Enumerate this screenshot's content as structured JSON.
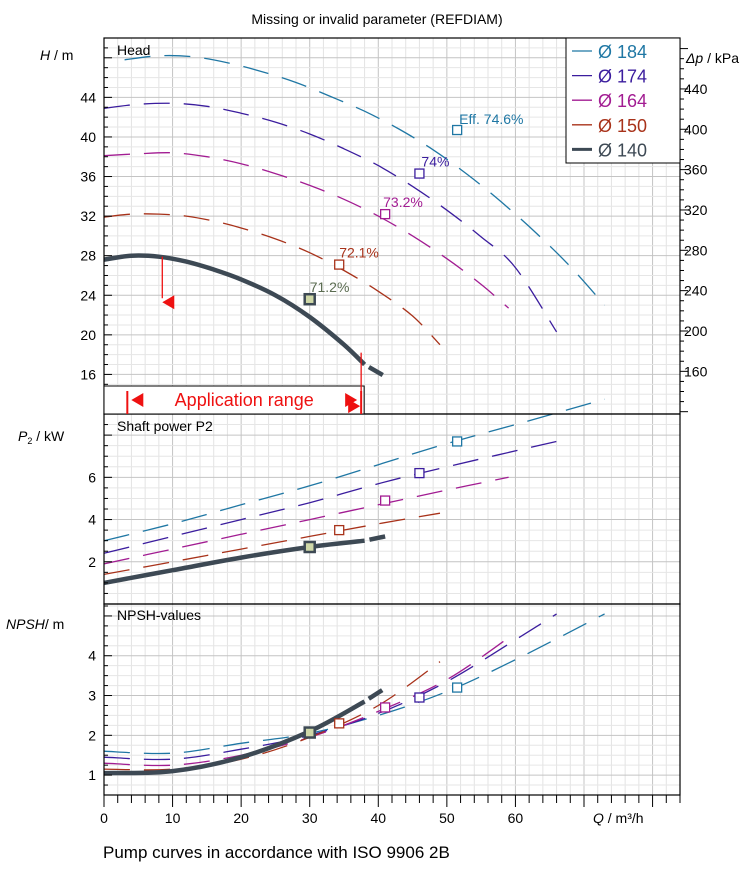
{
  "header": {
    "title": "Missing or invalid parameter (REFDIAM)"
  },
  "footer": {
    "caption": "Pump curves in accordance with ISO 9906 2B"
  },
  "chart_data": [
    {
      "type": "line",
      "panel": "head",
      "title": "Head",
      "ylabel_italic": "H",
      "ylabel_unit": " / m",
      "y2label_italic": "Δp",
      "y2label_unit": " / kPa",
      "xlabel_italic": "Q",
      "xlabel_unit": " / m³/h",
      "xlim": [
        0,
        84
      ],
      "ylim": [
        12,
        50
      ],
      "y2lim": [
        117.7,
        490.5
      ],
      "yticks": [
        16,
        20,
        24,
        28,
        32,
        36,
        40,
        44
      ],
      "y2ticks": [
        160,
        200,
        240,
        280,
        320,
        360,
        400,
        440
      ],
      "legend_position": "top-right",
      "series": [
        {
          "name": "Ø 184",
          "color": "#1f77a4",
          "x": [
            3,
            8,
            13,
            18,
            23,
            28,
            33,
            38,
            43,
            48,
            53,
            58,
            63,
            68,
            73
          ],
          "y": [
            47.8,
            48.2,
            48.1,
            47.5,
            46.6,
            45.5,
            44.1,
            42.6,
            40.8,
            38.7,
            36.2,
            33.4,
            30.3,
            26.9,
            23
          ]
        },
        {
          "name": "Ø 174",
          "color": "#3b1d9e",
          "x": [
            0,
            5,
            10,
            15,
            20,
            25,
            30,
            35,
            40,
            45,
            50,
            55,
            60,
            66
          ],
          "y": [
            42.9,
            43.3,
            43.4,
            43.1,
            42.4,
            41.5,
            40.3,
            38.8,
            37.1,
            35,
            32.6,
            29.9,
            26.8,
            20.3
          ]
        },
        {
          "name": "Ø 164",
          "color": "#a21c92",
          "x": [
            0,
            5,
            10,
            15,
            20,
            25,
            30,
            35,
            40,
            45,
            50,
            55,
            59
          ],
          "y": [
            38.1,
            38.3,
            38.4,
            38,
            37.3,
            36.3,
            35.1,
            33.7,
            32,
            30,
            27.7,
            25.1,
            22.7
          ]
        },
        {
          "name": "Ø 150",
          "color": "#a8321a",
          "x": [
            0,
            4,
            8,
            12,
            16,
            20,
            25,
            30,
            35,
            40,
            45,
            49
          ],
          "y": [
            31.9,
            32.2,
            32.2,
            32,
            31.5,
            30.8,
            29.7,
            28.3,
            26.5,
            24.4,
            21.9,
            19
          ]
        },
        {
          "name": "Ø 140",
          "color": "#3d4954",
          "bold": true,
          "x": [
            0,
            4,
            8,
            12,
            16,
            20,
            25,
            30,
            35,
            38,
            42.5
          ],
          "y": [
            27.6,
            28,
            27.9,
            27.4,
            26.6,
            25.6,
            24,
            21.8,
            19,
            17,
            15.2
          ]
        }
      ],
      "annotations": [
        {
          "label": "Eff.  74.6%",
          "x": 51.5,
          "y": 40.7,
          "color": "#1f77a4"
        },
        {
          "label": "74%",
          "x": 46,
          "y": 36.3,
          "color": "#3b1d9e"
        },
        {
          "label": "73.2%",
          "x": 41,
          "y": 32.2,
          "color": "#a21c92"
        },
        {
          "label": "72.1%",
          "x": 34.3,
          "y": 27.1,
          "color": "#a8321a"
        },
        {
          "label": "71.2%",
          "x": 30,
          "y": 23.6,
          "color": "#5a6b50"
        }
      ],
      "application_range": {
        "label": "Application range",
        "x": [
          3.4,
          37.5
        ]
      },
      "grid": true
    },
    {
      "type": "line",
      "panel": "power",
      "title": "Shaft power P2",
      "ylabel_italic": "P",
      "ylabel_sub": "2",
      "ylabel_unit": " / kW",
      "ylim": [
        0,
        9
      ],
      "yticks": [
        2,
        4,
        6
      ],
      "grid": true,
      "series": [
        {
          "name": "Ø 184",
          "x": [
            0,
            10,
            20,
            30,
            40,
            50,
            60,
            73
          ],
          "y": [
            3,
            3.8,
            4.7,
            5.6,
            6.6,
            7.6,
            8.5,
            9.7
          ]
        },
        {
          "name": "Ø 174",
          "x": [
            0,
            10,
            20,
            30,
            40,
            50,
            66
          ],
          "y": [
            2.4,
            3.2,
            4,
            4.8,
            5.7,
            6.5,
            7.7
          ]
        },
        {
          "name": "Ø 164",
          "x": [
            0,
            10,
            20,
            30,
            40,
            50,
            59
          ],
          "y": [
            1.9,
            2.6,
            3.3,
            4,
            4.7,
            5.4,
            6
          ]
        },
        {
          "name": "Ø 150",
          "x": [
            0,
            10,
            20,
            30,
            40,
            49
          ],
          "y": [
            1.4,
            2,
            2.6,
            3.2,
            3.8,
            4.3
          ]
        },
        {
          "name": "Ø 140",
          "x": [
            0,
            10,
            20,
            30,
            38,
            42.5
          ],
          "y": [
            1,
            1.6,
            2.2,
            2.7,
            3,
            3.3
          ]
        }
      ],
      "markers": [
        [
          51.5,
          7.7
        ],
        [
          46,
          6.2
        ],
        [
          41,
          4.9
        ],
        [
          34.3,
          3.5
        ],
        [
          30,
          2.7
        ]
      ]
    },
    {
      "type": "line",
      "panel": "npsh",
      "title": "NPSH-values",
      "ylabel_italic": "NPSH",
      "ylabel_unit": "/ m",
      "xlim": [
        0,
        84
      ],
      "xticks": [
        0,
        10,
        20,
        30,
        40,
        50,
        60
      ],
      "ylim": [
        0.5,
        5.3
      ],
      "yticks": [
        1,
        2,
        3,
        4
      ],
      "grid": true,
      "series": [
        {
          "name": "Ø 184",
          "x": [
            0,
            10,
            20,
            30,
            40,
            50,
            60,
            73
          ],
          "y": [
            1.6,
            1.55,
            1.8,
            2.05,
            2.5,
            3.1,
            3.9,
            5.05
          ]
        },
        {
          "name": "Ø 174",
          "x": [
            0,
            10,
            20,
            30,
            40,
            50,
            60,
            66
          ],
          "y": [
            1.45,
            1.4,
            1.65,
            2,
            2.55,
            3.35,
            4.4,
            5.05
          ]
        },
        {
          "name": "Ø 164",
          "x": [
            0,
            10,
            20,
            30,
            40,
            50,
            59
          ],
          "y": [
            1.3,
            1.25,
            1.5,
            1.95,
            2.6,
            3.4,
            4.45
          ]
        },
        {
          "name": "Ø 150",
          "x": [
            0,
            10,
            20,
            30,
            40,
            49
          ],
          "y": [
            1.15,
            1.15,
            1.4,
            1.95,
            2.75,
            3.85
          ]
        },
        {
          "name": "Ø 140",
          "x": [
            0,
            10,
            20,
            30,
            38,
            42.5
          ],
          "y": [
            1.05,
            1.1,
            1.45,
            2.1,
            2.85,
            3.35
          ]
        }
      ],
      "markers": [
        [
          51.5,
          3.2
        ],
        [
          46,
          2.95
        ],
        [
          41,
          2.7
        ],
        [
          34.3,
          2.3
        ],
        [
          30,
          2.07
        ]
      ]
    }
  ]
}
